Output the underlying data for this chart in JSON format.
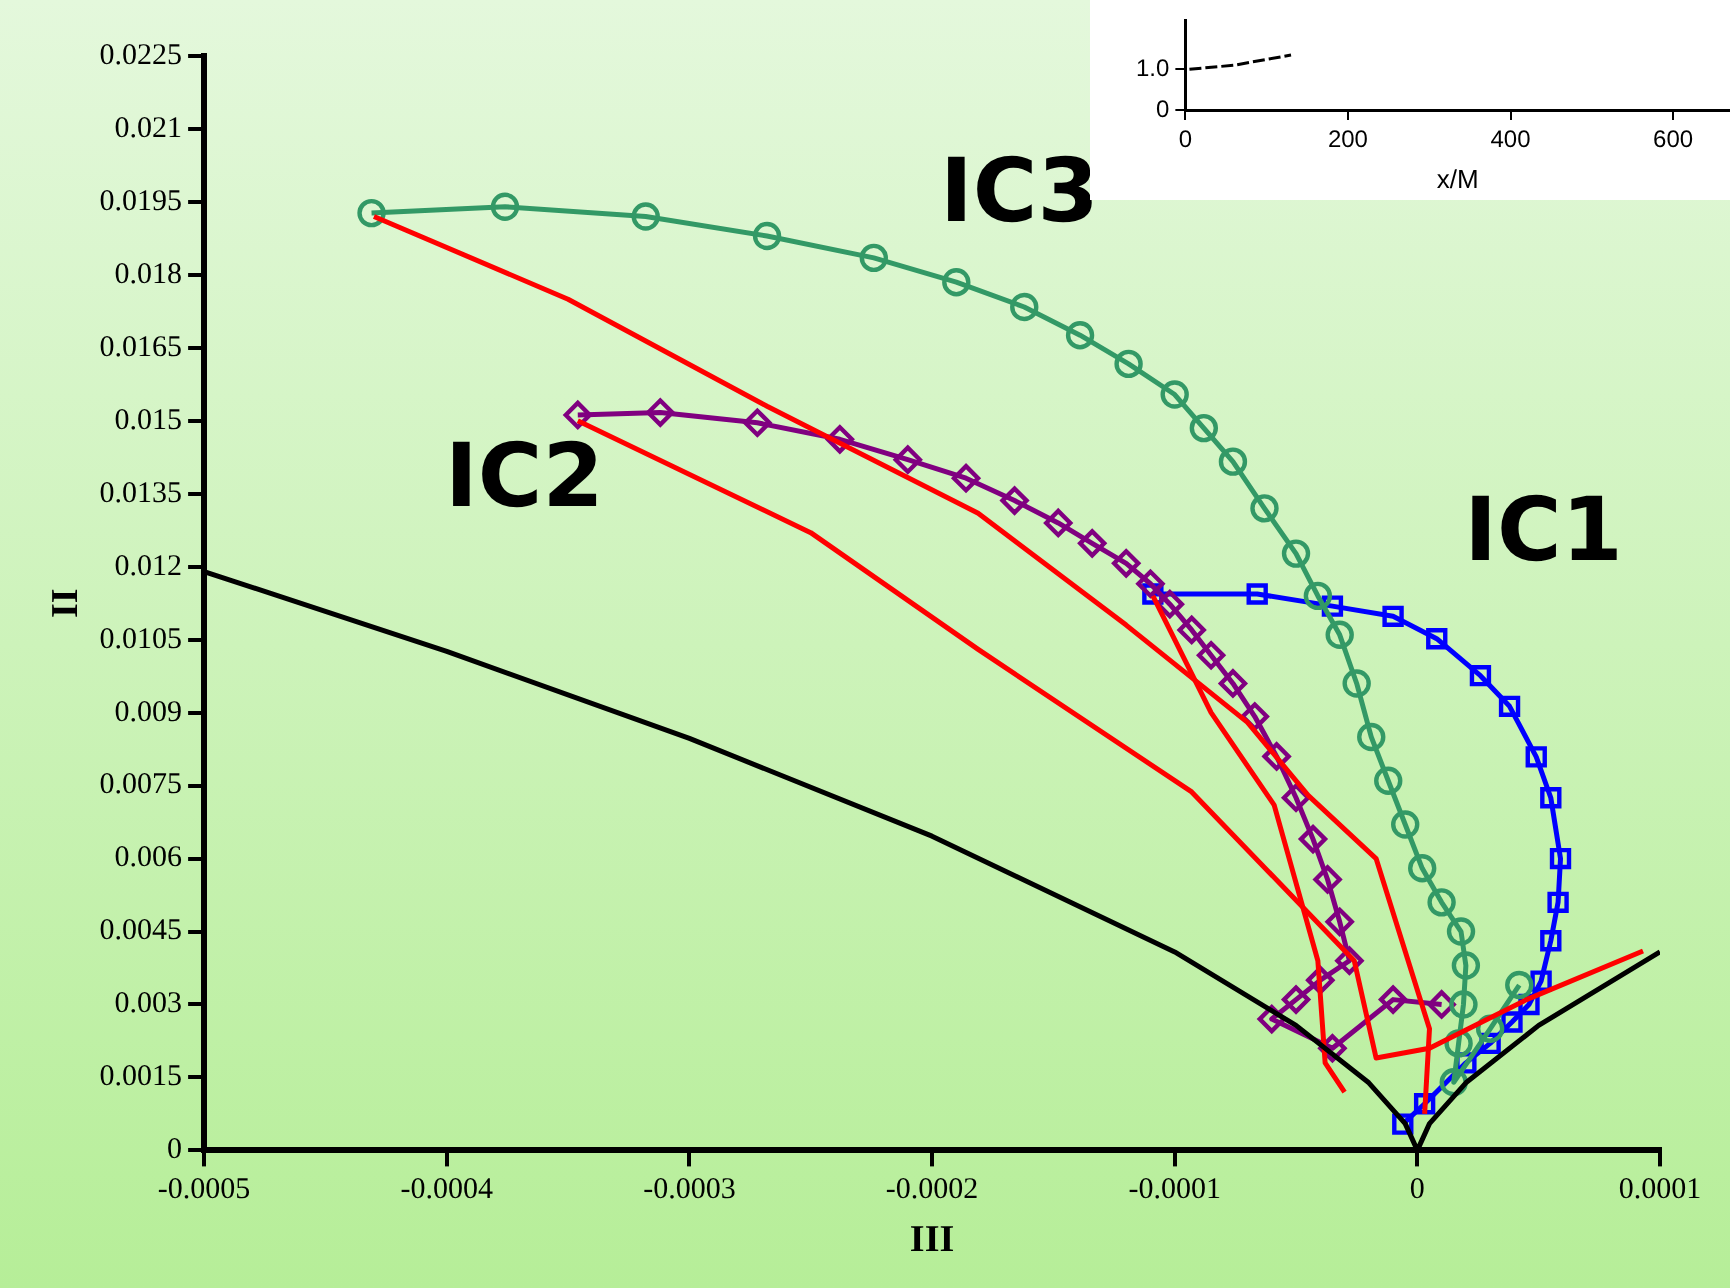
{
  "chart_data": [
    {
      "type": "line",
      "xlabel": "III",
      "ylabel": "II",
      "xlim": [
        -0.0005,
        0.0001
      ],
      "xticks": [
        -0.0005,
        -0.0004,
        -0.0003,
        -0.0002,
        -0.0001,
        0,
        0.0001
      ],
      "ylim": [
        0,
        0.0225
      ],
      "yticks": [
        0,
        0.0015,
        0.003,
        0.0045,
        0.006,
        0.0075,
        0.009,
        0.0105,
        0.012,
        0.0135,
        0.015,
        0.0165,
        0.018,
        0.0195,
        0.021,
        0.0225
      ],
      "grid": false,
      "legend": false,
      "line_style": "solid",
      "series": [
        {
          "color": "#000000",
          "marker": "none",
          "x": [
            -0.0005,
            -0.0004,
            -0.0003,
            -0.0002,
            -0.0001,
            -5e-05,
            -2e-05,
            -5e-06,
            0,
            5e-06,
            2e-05,
            5e-05,
            0.0001
          ],
          "values": [
            0.0119,
            0.01026,
            0.00847,
            0.00646,
            0.00408,
            0.00257,
            0.00139,
            0.00055,
            0,
            0.00055,
            0.00139,
            0.00257,
            0.00408
          ]
        },
        {
          "color": "#ff0000",
          "marker": "none",
          "x": [
            -0.00043,
            -0.00035,
            -0.000268,
            -0.000181,
            -0.00012,
            -7e-05,
            -4.5e-05,
            -1.7e-05,
            5e-06,
            3e-06
          ],
          "values": [
            0.0192,
            0.0175,
            0.0153,
            0.0131,
            0.0108,
            0.0088,
            0.0073,
            0.006,
            0.0025,
            0.00075
          ]
        },
        {
          "color": "#ff0000",
          "marker": "none",
          "x": [
            -0.000346,
            -0.00025,
            -0.000181,
            -9.3e-05,
            -2.6e-05,
            -1.7e-05,
            5e-06,
            4.5e-05,
            9.3e-05
          ],
          "values": [
            0.015,
            0.0127,
            0.0103,
            0.00737,
            0.0039,
            0.0019,
            0.0021,
            0.0031,
            0.0041
          ]
        },
        {
          "color": "#ff0000",
          "marker": "none",
          "x": [
            -0.000109,
            -8.5e-05,
            -5.9e-05,
            -4.1e-05,
            -3.8e-05,
            -3e-05
          ],
          "values": [
            0.0114,
            0.009,
            0.0071,
            0.0039,
            0.0018,
            0.0012
          ]
        },
        {
          "color": "#339966",
          "marker": "circle",
          "x": [
            -0.000431,
            -0.000376,
            -0.000318,
            -0.000268,
            -0.000224,
            -0.00019,
            -0.000162,
            -0.000139,
            -0.000119,
            -0.0001,
            -8.8e-05,
            -7.6e-05,
            -6.3e-05,
            -5e-05,
            -4.1e-05,
            -3.2e-05,
            -2.5e-05,
            -1.9e-05,
            -1.2e-05,
            -5e-06,
            2e-06,
            1e-05,
            1.8e-05,
            2e-05,
            1.9e-05,
            1.7e-05,
            1.5e-05,
            3e-05,
            4.2e-05
          ],
          "values": [
            0.01927,
            0.0194,
            0.0192,
            0.0188,
            0.01835,
            0.01785,
            0.01734,
            0.01676,
            0.01617,
            0.01554,
            0.01485,
            0.01416,
            0.0132,
            0.01227,
            0.0114,
            0.0106,
            0.0096,
            0.0085,
            0.0076,
            0.0067,
            0.0058,
            0.0051,
            0.0045,
            0.0038,
            0.003,
            0.0022,
            0.0014,
            0.0025,
            0.0034
          ]
        },
        {
          "color": "#800080",
          "marker": "diamond",
          "x": [
            -0.000346,
            -0.000312,
            -0.000272,
            -0.000238,
            -0.00021,
            -0.000186,
            -0.000166,
            -0.000148,
            -0.000134,
            -0.00012,
            -0.00011,
            -0.000102,
            -9.3e-05,
            -8.5e-05,
            -7.6e-05,
            -6.7e-05,
            -5.8e-05,
            -5e-05,
            -4.3e-05,
            -3.7e-05,
            -3.2e-05,
            -2.8e-05,
            -4e-05,
            -5e-05,
            -6e-05,
            -3.5e-05,
            -1e-05,
            1e-05
          ],
          "values": [
            0.01512,
            0.01517,
            0.01496,
            0.01462,
            0.0142,
            0.01382,
            0.01336,
            0.0129,
            0.01248,
            0.01207,
            0.01165,
            0.01123,
            0.0107,
            0.01018,
            0.0096,
            0.00892,
            0.0081,
            0.00725,
            0.0064,
            0.00557,
            0.0047,
            0.0039,
            0.0035,
            0.0031,
            0.0027,
            0.0021,
            0.0031,
            0.003
          ]
        },
        {
          "color": "#0000ff",
          "marker": "square",
          "x": [
            -0.000109,
            -6.6e-05,
            -3.5e-05,
            -1e-05,
            8e-06,
            2.6e-05,
            3.8e-05,
            4.9e-05,
            5.5e-05,
            5.9e-05,
            5.8e-05,
            5.5e-05,
            5.1e-05,
            4.6e-05,
            3.9e-05,
            3e-05,
            2e-05,
            3e-06,
            -6e-06
          ],
          "values": [
            0.01144,
            0.01144,
            0.01119,
            0.01098,
            0.01052,
            0.00976,
            0.00913,
            0.00809,
            0.00725,
            0.006,
            0.0051,
            0.00431,
            0.00348,
            0.003,
            0.00264,
            0.0022,
            0.0018,
            0.00096,
            0.00054
          ]
        }
      ],
      "annotations": [
        "IC3",
        "IC2",
        "IC1"
      ]
    },
    {
      "type": "line",
      "xlabel": "x/M",
      "xlim": [
        0,
        670
      ],
      "xticks": [
        0,
        200,
        400,
        600
      ],
      "ylim": [
        0,
        2.2
      ],
      "yticks": [
        0,
        {
          "value": 1,
          "label": "1.0"
        }
      ],
      "grid": false,
      "legend": false,
      "series": [
        {
          "color": "#000000",
          "marker": "none",
          "line_style": "dashed",
          "x": [
            5,
            60,
            130
          ],
          "values": [
            1.0,
            1.1,
            1.35
          ]
        }
      ]
    }
  ]
}
